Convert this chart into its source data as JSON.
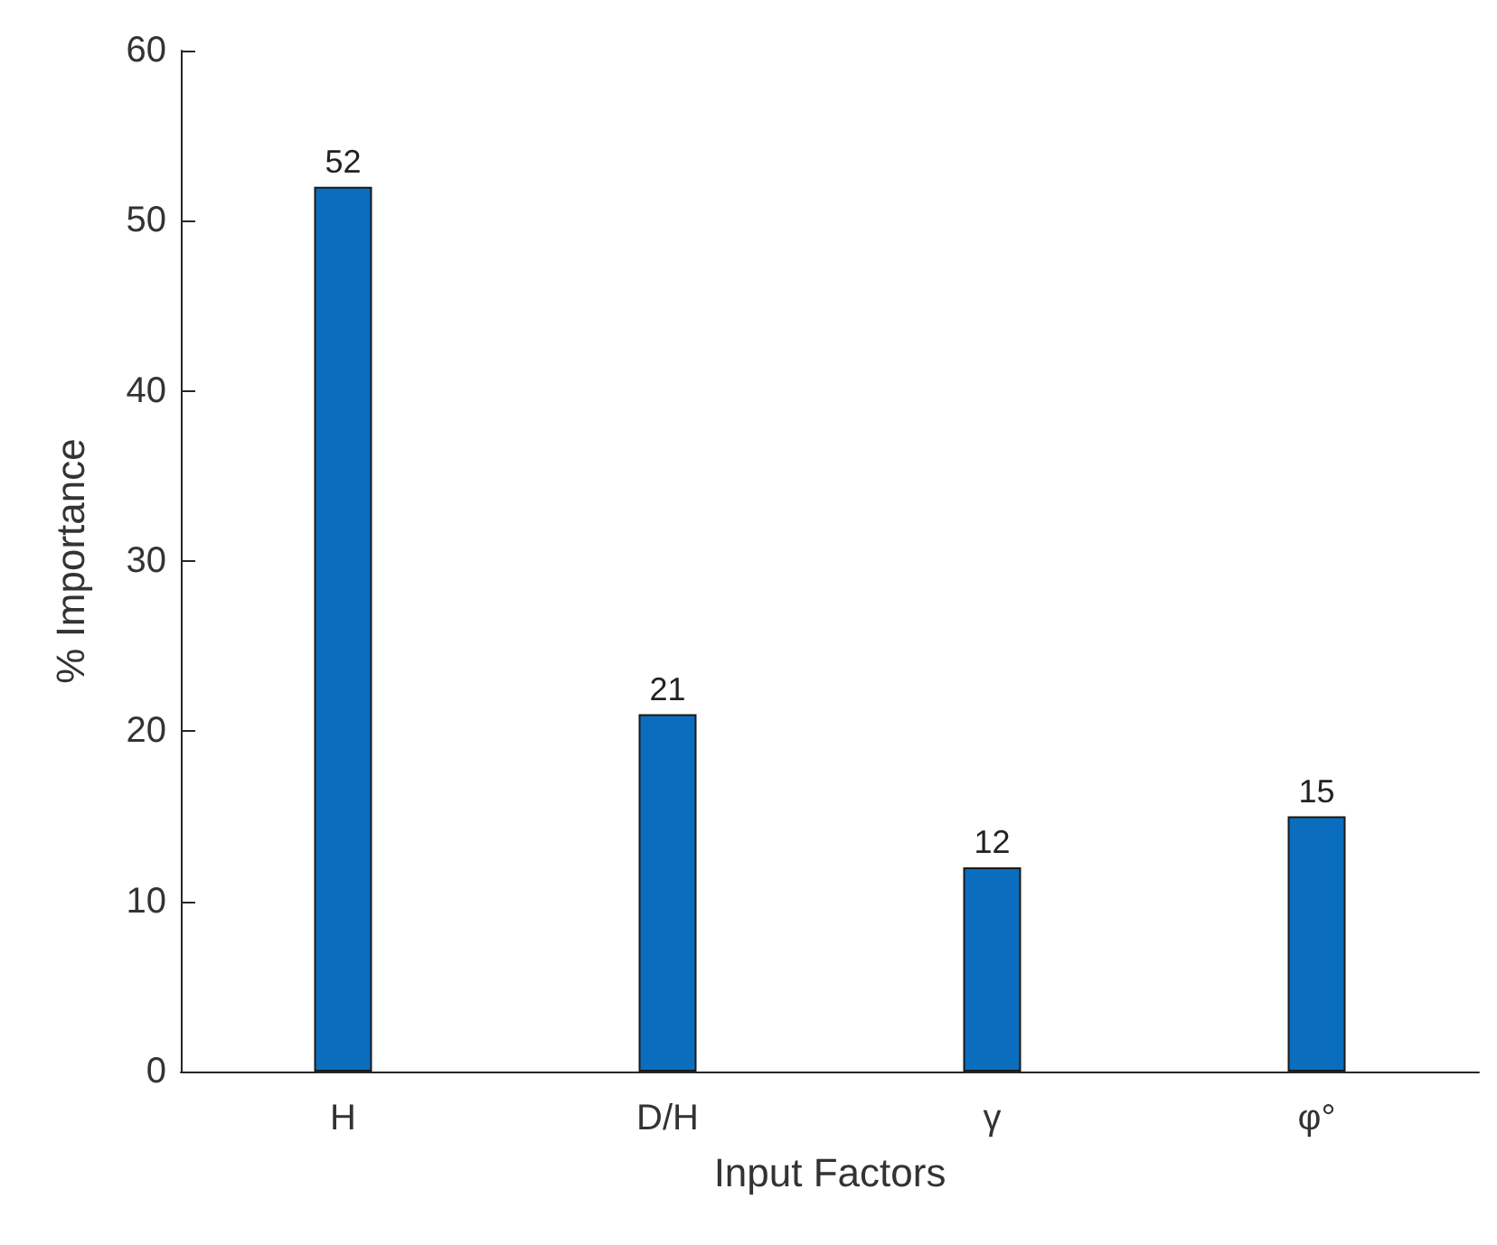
{
  "chart_data": {
    "type": "bar",
    "xlabel": "Input Factors",
    "ylabel": "% Importance",
    "categories": [
      "H",
      "D/H",
      "γ",
      "φ°"
    ],
    "values": [
      52,
      21,
      12,
      15
    ],
    "color": "#0b6dbd",
    "ylim": [
      0,
      60
    ],
    "yticks": [
      0,
      10,
      20,
      30,
      40,
      50,
      60
    ],
    "data_labels": true
  }
}
